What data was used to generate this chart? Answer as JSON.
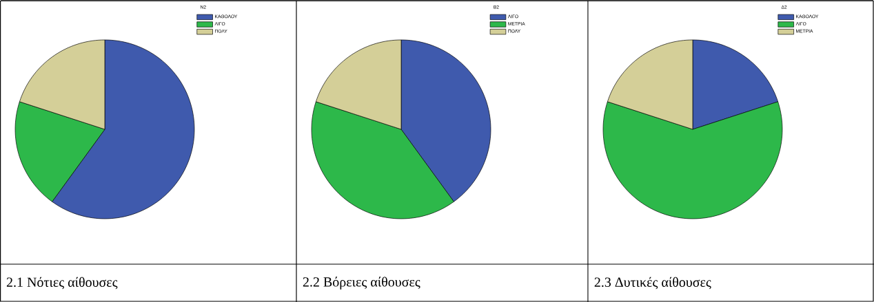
{
  "chart_data": [
    {
      "type": "pie",
      "title": "2.1 Νότιες αίθουσες",
      "legend_title": "Ν2",
      "categories": [
        "ΚΑΘΟΛΟΥ",
        "ΛΙΓΟ",
        "ΠΟΛΥ"
      ],
      "values": [
        60,
        20,
        20
      ],
      "colors": [
        "#3f5aad",
        "#2db84a",
        "#d4cf98"
      ],
      "legend": "top right"
    },
    {
      "type": "pie",
      "title": "2.2 Βόρειες αίθουσες",
      "legend_title": "Β2",
      "categories": [
        "ΛΙΓΟ",
        "ΜΕΤΡΙΑ",
        "ΠΟΛΥ"
      ],
      "values": [
        40,
        40,
        20
      ],
      "colors": [
        "#3f5aad",
        "#2db84a",
        "#d4cf98"
      ],
      "legend": "top right"
    },
    {
      "type": "pie",
      "title": "2.3 Δυτικές αίθουσες",
      "legend_title": "Δ2",
      "categories": [
        "ΚΑΘΟΛΟΥ",
        "ΛΙΓΟ",
        "ΜΕΤΡΙΑ"
      ],
      "values": [
        20,
        60,
        20
      ],
      "colors": [
        "#3f5aad",
        "#2db84a",
        "#d4cf98"
      ],
      "legend": "top right"
    }
  ]
}
